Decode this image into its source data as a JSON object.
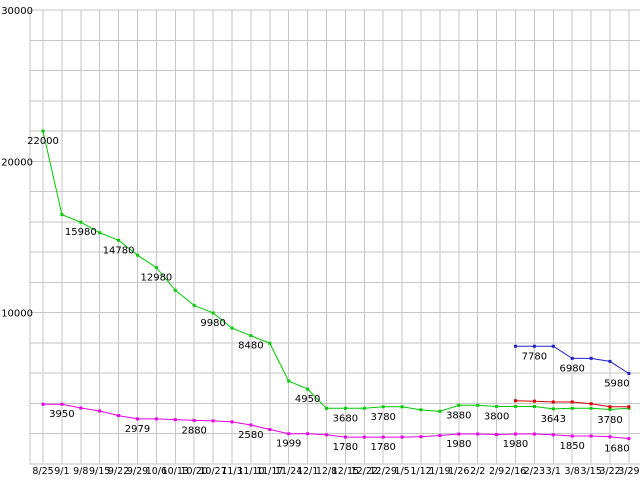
{
  "chart_data": {
    "type": "line",
    "title": "",
    "xlabel": "",
    "ylabel": "",
    "ylim": [
      0,
      30000
    ],
    "y_grid_step": 2000,
    "grid": true,
    "grid_color": "#c6c6c6",
    "background_color": "#ffffff",
    "text_color": "#000000",
    "legend": "none",
    "y_ticks": [
      {
        "v": 10000,
        "label": "10000"
      },
      {
        "v": 20000,
        "label": "20000"
      },
      {
        "v": 30000,
        "label": "30000"
      }
    ],
    "x_tick_labels": [
      "8/25",
      "9/1",
      "9/8",
      "9/15",
      "9/22",
      "9/29",
      "10/6",
      "10/13",
      "10/20",
      "10/27",
      "11/3",
      "11/10",
      "11/17",
      "11/24",
      "12/1",
      "12/8",
      "12/15",
      "12/22",
      "12/29",
      "1/5",
      "1/12",
      "1/19",
      "1/26",
      "2/2",
      "2/9",
      "2/16",
      "2/23",
      "3/1",
      "3/8",
      "3/15",
      "3/22",
      "3/29"
    ],
    "series": [
      {
        "name": "green",
        "color": "#00cc00",
        "start": 0,
        "values": [
          22000,
          16480,
          15980,
          15280,
          14780,
          13800,
          12980,
          11480,
          10480,
          9980,
          8980,
          8480,
          7980,
          5480,
          4950,
          3680,
          3680,
          3680,
          3780,
          3780,
          3580,
          3480,
          3880,
          3880,
          3800,
          3800,
          3800,
          3643,
          3680,
          3680,
          3600,
          3680
        ],
        "point_labels": [
          {
            "i": 0,
            "text": "22000"
          },
          {
            "i": 2,
            "text": "15980"
          },
          {
            "i": 4,
            "text": "14780"
          },
          {
            "i": 6,
            "text": "12980"
          },
          {
            "i": 9,
            "text": "9980"
          },
          {
            "i": 11,
            "text": "8480"
          },
          {
            "i": 14,
            "text": "4950"
          },
          {
            "i": 16,
            "text": "3680"
          },
          {
            "i": 18,
            "text": "3780"
          },
          {
            "i": 22,
            "text": "3880"
          },
          {
            "i": 24,
            "text": "3800"
          },
          {
            "i": 27,
            "text": "3643"
          }
        ]
      },
      {
        "name": "magenta",
        "color": "#e800e8",
        "start": 0,
        "values": [
          3950,
          3950,
          3700,
          3500,
          3200,
          2979,
          2979,
          2929,
          2880,
          2850,
          2780,
          2580,
          2280,
          1999,
          1999,
          1930,
          1780,
          1780,
          1780,
          1780,
          1800,
          1880,
          1980,
          1980,
          1950,
          1980,
          1980,
          1930,
          1850,
          1850,
          1800,
          1680
        ],
        "point_labels": [
          {
            "i": 1,
            "text": "3950"
          },
          {
            "i": 5,
            "text": "2979"
          },
          {
            "i": 8,
            "text": "2880"
          },
          {
            "i": 11,
            "text": "2580"
          },
          {
            "i": 13,
            "text": "1999"
          },
          {
            "i": 16,
            "text": "1780"
          },
          {
            "i": 18,
            "text": "1780"
          },
          {
            "i": 22,
            "text": "1980"
          },
          {
            "i": 25,
            "text": "1980"
          },
          {
            "i": 28,
            "text": "1850"
          },
          {
            "i": 31,
            "text": "1680",
            "dx": -12
          }
        ]
      },
      {
        "name": "blue",
        "color": "#2020cc",
        "start": 25,
        "values": [
          7780,
          7780,
          7780,
          6980,
          6980,
          6780,
          5980
        ],
        "point_labels": [
          {
            "i": 26,
            "text": "7780"
          },
          {
            "i": 28,
            "text": "6980"
          },
          {
            "i": 31,
            "text": "5980",
            "dx": -12
          }
        ]
      },
      {
        "name": "red",
        "color": "#d40000",
        "start": 25,
        "values": [
          4180,
          4150,
          4100,
          4100,
          3980,
          3780,
          3780
        ],
        "point_labels": [
          {
            "i": 30,
            "text": "3780",
            "dy": 16
          }
        ]
      }
    ]
  }
}
